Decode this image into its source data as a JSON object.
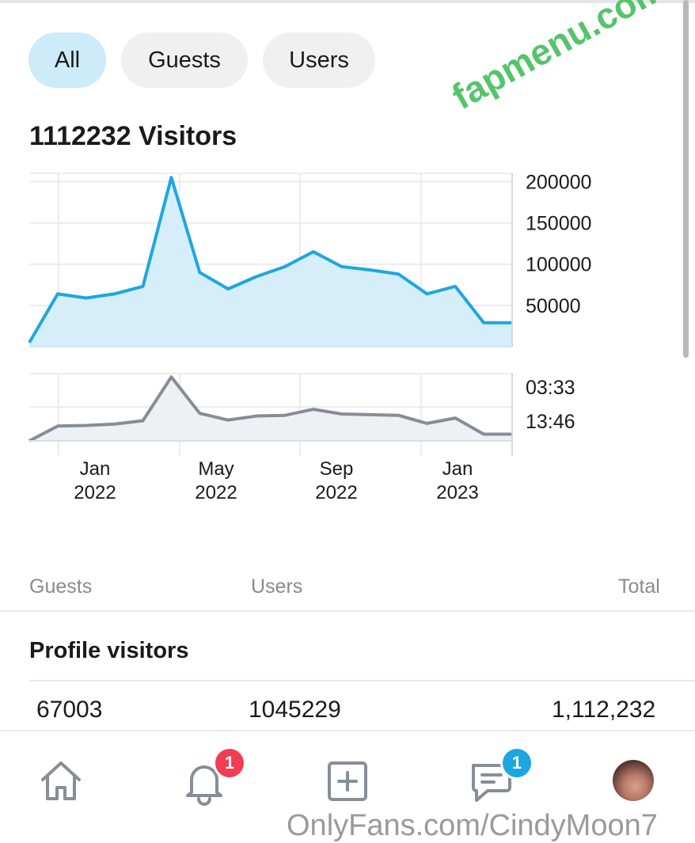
{
  "tabs": [
    {
      "label": "All",
      "active": true
    },
    {
      "label": "Guests",
      "active": false
    },
    {
      "label": "Users",
      "active": false
    }
  ],
  "heading": "1112232 Visitors",
  "watermark": "fapmenu.com",
  "chart_data": [
    {
      "type": "area",
      "x": [
        "2021-10",
        "2021-11",
        "2021-12",
        "2022-01",
        "2022-02",
        "2022-03",
        "2022-04",
        "2022-05",
        "2022-06",
        "2022-07",
        "2022-08",
        "2022-09",
        "2022-10",
        "2022-11",
        "2022-12",
        "2023-01",
        "2023-02",
        "2023-03"
      ],
      "series": [
        {
          "values": [
            5000,
            64000,
            59000,
            64000,
            73000,
            205000,
            90000,
            70000,
            85000,
            97000,
            115000,
            97000,
            93000,
            88000,
            64000,
            73000,
            29000,
            29000
          ]
        }
      ],
      "yticks": [
        "200000",
        "150000",
        "100000",
        "50000"
      ],
      "ylim": [
        0,
        210000
      ],
      "color": "#1da7e0",
      "fill": "#d6eef9",
      "grid": true
    },
    {
      "type": "area",
      "x": [
        "2021-10",
        "2021-11",
        "2021-12",
        "2022-01",
        "2022-02",
        "2022-03",
        "2022-04",
        "2022-05",
        "2022-06",
        "2022-07",
        "2022-08",
        "2022-09",
        "2022-10",
        "2022-11",
        "2022-12",
        "2023-01",
        "2023-02",
        "2023-03"
      ],
      "series": [
        {
          "values": [
            0.0,
            0.22,
            0.23,
            0.25,
            0.3,
            0.95,
            0.41,
            0.31,
            0.37,
            0.38,
            0.47,
            0.4,
            0.39,
            0.38,
            0.26,
            0.34,
            0.1,
            0.1
          ]
        }
      ],
      "yticks": [
        "03:33",
        "13:46"
      ],
      "color": "#878d96",
      "fill": "#eef1f3",
      "grid": true
    }
  ],
  "xaxis_ticks": [
    {
      "month": "Jan",
      "year": "2022"
    },
    {
      "month": "May",
      "year": "2022"
    },
    {
      "month": "Sep",
      "year": "2022"
    },
    {
      "month": "Jan",
      "year": "2023"
    }
  ],
  "table": {
    "headers": {
      "guests": "Guests",
      "users": "Users",
      "total": "Total"
    },
    "section_title": "Profile visitors",
    "row": {
      "guests": "67003",
      "users": "1045229",
      "total": "1,112,232"
    }
  },
  "nav": {
    "notifications_badge": "1",
    "messages_badge": "1",
    "accent_badge_red": "#ef3e54",
    "accent_badge_blue": "#1da7e0"
  },
  "footer_watermark": "OnlyFans.com/CindyMoon7"
}
